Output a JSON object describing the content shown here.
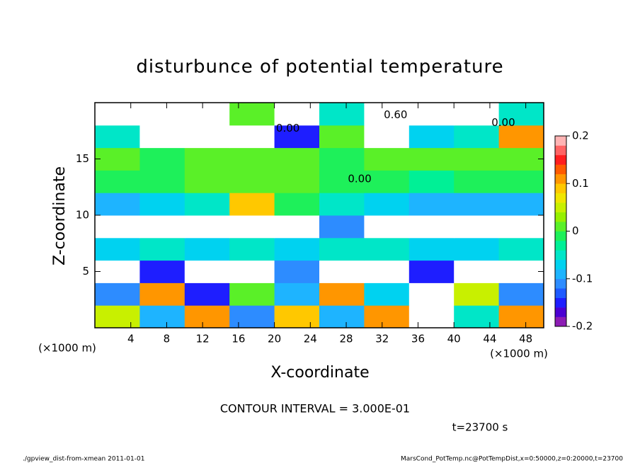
{
  "chart_data": {
    "type": "heatmap",
    "title": "disturbunce of potential temperature",
    "xlabel": "X-coordinate",
    "ylabel": "Z-coordinate",
    "xunit": "(×1000 m)",
    "yunit": "(×1000 m)",
    "contour_interval": "CONTOUR INTERVAL = 3.000E-01",
    "time_label": "t=23700 s",
    "footer_left": "./gpview_dist-from-xmean   2011-01-01",
    "footer_right": "MarsCond_PotTemp.nc@PotTempDist,x=0:50000,z=0:20000,t=23700",
    "xlim": [
      0,
      50
    ],
    "ylim": [
      0,
      20
    ],
    "xticks": [
      4,
      8,
      12,
      16,
      20,
      24,
      28,
      32,
      36,
      40,
      44,
      48
    ],
    "yticks": [
      5,
      10,
      15
    ],
    "x_edges": [
      0,
      5,
      10,
      15,
      20,
      25,
      30,
      35,
      40,
      45,
      50
    ],
    "z_edges": [
      0,
      2,
      4,
      6,
      8,
      10,
      12,
      14,
      16,
      18,
      20
    ],
    "values": [
      [
        0.05,
        -0.1,
        0.12,
        -0.12,
        0.08,
        -0.1,
        0.1,
        null,
        -0.05,
        0.1
      ],
      [
        -0.12,
        0.1,
        -0.15,
        0.0,
        -0.1,
        0.12,
        -0.08,
        null,
        0.05,
        -0.12
      ],
      [
        null,
        -0.15,
        null,
        null,
        -0.12,
        null,
        null,
        -0.15,
        null,
        null
      ],
      [
        -0.07,
        -0.06,
        -0.08,
        -0.05,
        -0.07,
        -0.06,
        -0.04,
        -0.07,
        -0.08,
        -0.06
      ],
      [
        null,
        null,
        null,
        null,
        null,
        -0.12,
        null,
        null,
        null,
        null
      ],
      [
        -0.1,
        -0.08,
        -0.06,
        0.08,
        -0.02,
        -0.05,
        -0.08,
        -0.1,
        -0.09,
        -0.1
      ],
      [
        -0.02,
        -0.02,
        0.02,
        0.0,
        0.01,
        -0.01,
        -0.02,
        -0.03,
        -0.02,
        -0.01
      ],
      [
        0.0,
        -0.01,
        0.0,
        0.0,
        0.0,
        -0.01,
        0.0,
        0.0,
        0.01,
        0.0
      ],
      [
        -0.06,
        null,
        null,
        null,
        -0.15,
        0.0,
        null,
        -0.08,
        -0.05,
        0.12
      ],
      [
        null,
        null,
        null,
        0.02,
        null,
        -0.06,
        null,
        null,
        null,
        -0.04
      ]
    ],
    "clim": [
      -0.2,
      0.2
    ],
    "cticks": [
      -0.2,
      -0.1,
      0,
      0.1,
      0.2
    ],
    "colors": [
      "#8c1cb4",
      "#4b00d2",
      "#1e1eff",
      "#1e5aff",
      "#2d8cff",
      "#1eb4ff",
      "#00d2f0",
      "#00e6c8",
      "#00f096",
      "#1ef05a",
      "#5af028",
      "#96f000",
      "#c8f000",
      "#f0e600",
      "#ffc800",
      "#ff9600",
      "#ff5a00",
      "#ff1e1e",
      "#ff6464",
      "#ffb4b4"
    ],
    "annotations": [
      {
        "text": "0.60",
        "x": 33.5,
        "z": 18.9
      },
      {
        "text": "0.00",
        "x": 21.5,
        "z": 17.7
      },
      {
        "text": "0.00",
        "x": 45.5,
        "z": 18.2
      },
      {
        "text": "0.00",
        "x": 29.5,
        "z": 13.2
      }
    ]
  }
}
